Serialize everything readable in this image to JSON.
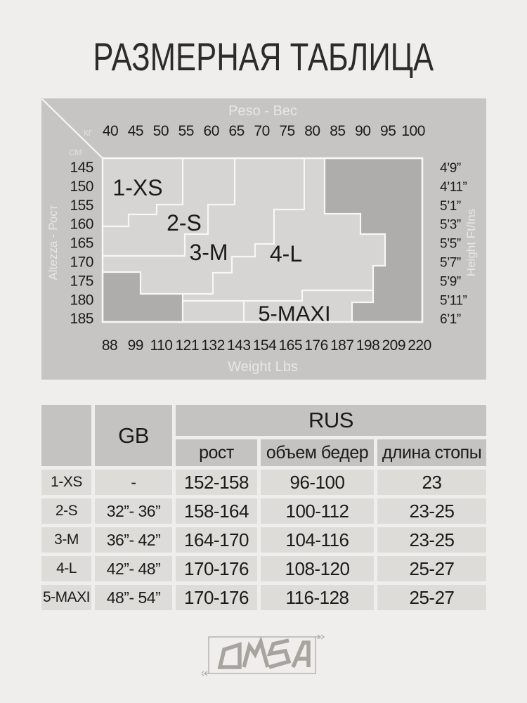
{
  "page": {
    "title": "РАЗМЕРНАЯ ТАБЛИЦА"
  },
  "size_map": {
    "top_axis": "Peso - Вес",
    "bottom_axis": "Weight Lbs",
    "left_axis": "Altezza - Рост",
    "right_axis": "Height Ft/Ins",
    "kg_unit": "кг",
    "cm_unit": "см",
    "weights_kg": [
      "40",
      "45",
      "50",
      "55",
      "60",
      "65",
      "70",
      "75",
      "80",
      "85",
      "90",
      "95",
      "100"
    ],
    "weights_lbs": [
      "88",
      "99",
      "110",
      "121",
      "132",
      "143",
      "154",
      "165",
      "176",
      "187",
      "198",
      "209",
      "220"
    ],
    "heights_cm": [
      "145",
      "150",
      "155",
      "160",
      "165",
      "170",
      "175",
      "180",
      "185"
    ],
    "heights_ft": [
      "4’9”",
      "4’11”",
      "5’1”",
      "5’3”",
      "5’5”",
      "5’7”",
      "5’9”",
      "5’11”",
      "6’1”"
    ],
    "zone_labels": [
      "1-XS",
      "2-S",
      "3-M",
      "4-L",
      "5-MAXI"
    ]
  },
  "size_table": {
    "gb_header": "GB",
    "rus_header": "RUS",
    "sub_headers": [
      "рост",
      "объем бедер",
      "длина стопы"
    ],
    "rows": [
      {
        "size": "1-XS",
        "gb": "-",
        "rost": "152-158",
        "hips": "96-100",
        "foot": "23"
      },
      {
        "size": "2-S",
        "gb": "32”- 36”",
        "rost": "158-164",
        "hips": "100-112",
        "foot": "23-25"
      },
      {
        "size": "3-M",
        "gb": "36”- 42”",
        "rost": "164-170",
        "hips": "104-116",
        "foot": "23-25"
      },
      {
        "size": "4-L",
        "gb": "42”- 48”",
        "rost": "170-176",
        "hips": "108-120",
        "foot": "25-27"
      },
      {
        "size": "5-MAXI",
        "gb": "48”- 54”",
        "rost": "170-176",
        "hips": "116-128",
        "foot": "25-27"
      }
    ]
  },
  "brand": {
    "name": "OMSA"
  },
  "colors": {
    "page_bg": "#efeeec",
    "panel_gray": "#c6c5c3",
    "zone_light": "#d7d5d3",
    "zone_dark": "#aeadab",
    "line_white": "#f8f7f5",
    "text_dark": "#1b1b19",
    "text_light": "#e8e7e5",
    "logo_gray": "#a7a39e"
  },
  "chart_data": {
    "type": "heatmap",
    "title": "РАЗМЕРНАЯ ТАБЛИЦА",
    "x_axis": {
      "top_label": "Peso - Вес",
      "top_unit": "кг",
      "top_ticks": [
        40,
        45,
        50,
        55,
        60,
        65,
        70,
        75,
        80,
        85,
        90,
        95,
        100
      ],
      "bottom_label": "Weight Lbs",
      "bottom_ticks": [
        88,
        99,
        110,
        121,
        132,
        143,
        154,
        165,
        176,
        187,
        198,
        209,
        220
      ]
    },
    "y_axis": {
      "left_label": "Altezza - Рост",
      "left_unit": "см",
      "left_ticks": [
        145,
        150,
        155,
        160,
        165,
        170,
        175,
        180,
        185
      ],
      "right_label": "Height Ft/Ins",
      "right_ticks": [
        "4’9”",
        "4’11”",
        "5’1”",
        "5’3”",
        "5’5”",
        "5’7”",
        "5’9”",
        "5’11”",
        "6’1”"
      ]
    },
    "zones": [
      {
        "label": "1-XS",
        "approx_weight_kg": [
          40,
          55
        ],
        "approx_height_cm": [
          145,
          160
        ]
      },
      {
        "label": "2-S",
        "approx_weight_kg": [
          40,
          65
        ],
        "approx_height_cm": [
          145,
          170
        ]
      },
      {
        "label": "3-M",
        "approx_weight_kg": [
          40,
          78
        ],
        "approx_height_cm": [
          145,
          178
        ]
      },
      {
        "label": "4-L",
        "approx_weight_kg": [
          55,
          92
        ],
        "approx_height_cm": [
          145,
          182
        ]
      },
      {
        "label": "5-MAXI",
        "approx_weight_kg": [
          52,
          95
        ],
        "approx_height_cm": [
          172,
          185
        ]
      },
      {
        "label": "dark-unavailable",
        "regions": "top-right, right edge steps, bottom-left corner"
      }
    ],
    "table": {
      "columns": [
        "",
        "GB",
        "RUS рост",
        "RUS объем бедер",
        "RUS длина стопы"
      ],
      "rows": [
        [
          "1-XS",
          "-",
          "152-158",
          "96-100",
          "23"
        ],
        [
          "2-S",
          "32”- 36”",
          "158-164",
          "100-112",
          "23-25"
        ],
        [
          "3-M",
          "36”- 42”",
          "164-170",
          "104-116",
          "23-25"
        ],
        [
          "4-L",
          "42”- 48”",
          "170-176",
          "108-120",
          "25-27"
        ],
        [
          "5-MAXI",
          "48”- 54”",
          "170-176",
          "116-128",
          "25-27"
        ]
      ]
    }
  }
}
